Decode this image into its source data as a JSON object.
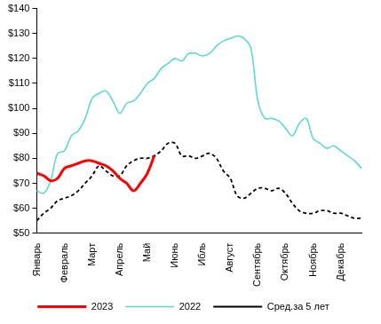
{
  "chart_data": {
    "type": "line",
    "categories": [
      "Январь",
      null,
      null,
      null,
      "Февраль",
      null,
      null,
      null,
      "Март",
      null,
      null,
      null,
      "Апрель",
      null,
      null,
      null,
      "Май",
      null,
      null,
      null,
      "Июнь",
      null,
      null,
      null,
      "Ибль",
      null,
      null,
      null,
      "Август",
      null,
      null,
      null,
      "Сентябрь",
      null,
      null,
      null,
      "Октябрь",
      null,
      null,
      null,
      "Ноябрь",
      null,
      null,
      null,
      "Декабрь",
      null,
      null,
      null
    ],
    "series": [
      {
        "name": "2023",
        "color": "#ff0000",
        "line_style": "solid",
        "marker": "none",
        "values": [
          74,
          73,
          71,
          72,
          76,
          77,
          78,
          79,
          79,
          78,
          77,
          75,
          72,
          70,
          67,
          70,
          74,
          81,
          null,
          null,
          null,
          null,
          null,
          null,
          null,
          null,
          null,
          null,
          null,
          null,
          null,
          null,
          null,
          null,
          null,
          null,
          null,
          null,
          null,
          null,
          null,
          null,
          null,
          null,
          null,
          null,
          null,
          null
        ]
      },
      {
        "name": "2022",
        "color": "#5fd8d0",
        "line_style": "solid",
        "marker": "none",
        "values": [
          67,
          66,
          71,
          82,
          83,
          89,
          91,
          96,
          104,
          106,
          107,
          103,
          98,
          102,
          103,
          106,
          110,
          112,
          116,
          118,
          120,
          119,
          122,
          122,
          121,
          122,
          125,
          127,
          128,
          129,
          128,
          124,
          103,
          96,
          96,
          95,
          92,
          89,
          94,
          96,
          88,
          86,
          84,
          85,
          83,
          81,
          79,
          76
        ]
      },
      {
        "name": "Сред.за 5 лет",
        "color": "#000000",
        "line_style": "dashed",
        "marker": "none",
        "values": [
          55,
          58,
          60,
          63,
          64,
          65,
          67,
          70,
          73,
          77,
          75,
          73,
          73,
          77,
          79,
          80,
          80,
          81,
          83,
          86,
          86,
          81,
          81,
          80,
          81,
          82,
          80,
          75,
          72,
          65,
          64,
          66,
          68,
          68,
          67,
          68,
          66,
          62,
          59,
          58,
          58,
          59,
          59,
          58,
          58,
          57,
          56,
          56
        ]
      }
    ],
    "ylim": [
      50,
      140
    ],
    "yticks": [
      {
        "value": 50,
        "label": "$50"
      },
      {
        "value": 60,
        "label": "$60"
      },
      {
        "value": 70,
        "label": "$70"
      },
      {
        "value": 80,
        "label": "$80"
      },
      {
        "value": 90,
        "label": "$90"
      },
      {
        "value": 100,
        "label": "$100"
      },
      {
        "value": 110,
        "label": "$110"
      },
      {
        "value": 120,
        "label": "$120"
      },
      {
        "value": 130,
        "label": "$130"
      },
      {
        "value": 140,
        "label": "$140"
      }
    ],
    "grid": false,
    "legend": "bottom"
  }
}
